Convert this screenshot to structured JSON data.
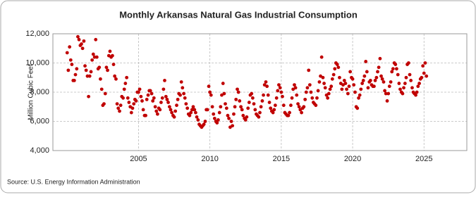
{
  "chart_data": {
    "type": "scatter",
    "title": "Monthly Arkansas Natural Gas Industrial Consumption",
    "y_label": "Million Cubic Feet",
    "source": "Source: U.S. Energy Information Administration",
    "color": "#c00000",
    "grid": true,
    "xlim": [
      1999,
      2028
    ],
    "xticks": [
      2005,
      2010,
      2015,
      2020,
      2025
    ],
    "ylim": [
      4000,
      12000
    ],
    "yticks": [
      {
        "value": 4000,
        "label": "4,000"
      },
      {
        "value": 6000,
        "label": "6,000"
      },
      {
        "value": 8000,
        "label": "8,000"
      },
      {
        "value": 10000,
        "label": "10,000"
      },
      {
        "value": 12000,
        "label": "12,000"
      }
    ],
    "x": [
      2000.0,
      2000.08,
      2000.17,
      2000.25,
      2000.33,
      2000.42,
      2000.5,
      2000.58,
      2000.67,
      2000.75,
      2000.83,
      2000.92,
      2001.0,
      2001.08,
      2001.17,
      2001.25,
      2001.33,
      2001.42,
      2001.5,
      2001.58,
      2001.67,
      2001.75,
      2001.83,
      2001.92,
      2002.0,
      2002.08,
      2002.17,
      2002.25,
      2002.33,
      2002.42,
      2002.5,
      2002.58,
      2002.67,
      2002.75,
      2002.83,
      2002.92,
      2003.0,
      2003.08,
      2003.17,
      2003.25,
      2003.33,
      2003.42,
      2003.5,
      2003.58,
      2003.67,
      2003.75,
      2003.83,
      2003.92,
      2004.0,
      2004.08,
      2004.17,
      2004.25,
      2004.33,
      2004.42,
      2004.5,
      2004.58,
      2004.67,
      2004.75,
      2004.83,
      2004.92,
      2005.0,
      2005.08,
      2005.17,
      2005.25,
      2005.33,
      2005.42,
      2005.5,
      2005.58,
      2005.67,
      2005.75,
      2005.83,
      2005.92,
      2006.0,
      2006.08,
      2006.17,
      2006.25,
      2006.33,
      2006.42,
      2006.5,
      2006.58,
      2006.67,
      2006.75,
      2006.83,
      2006.92,
      2007.0,
      2007.08,
      2007.17,
      2007.25,
      2007.33,
      2007.42,
      2007.5,
      2007.58,
      2007.67,
      2007.75,
      2007.83,
      2007.92,
      2008.0,
      2008.08,
      2008.17,
      2008.25,
      2008.33,
      2008.42,
      2008.5,
      2008.58,
      2008.67,
      2008.75,
      2008.83,
      2008.92,
      2009.0,
      2009.08,
      2009.17,
      2009.25,
      2009.33,
      2009.42,
      2009.5,
      2009.58,
      2009.67,
      2009.75,
      2009.83,
      2009.92,
      2010.0,
      2010.08,
      2010.17,
      2010.25,
      2010.33,
      2010.42,
      2010.5,
      2010.58,
      2010.67,
      2010.75,
      2010.83,
      2010.92,
      2011.0,
      2011.08,
      2011.17,
      2011.25,
      2011.33,
      2011.42,
      2011.5,
      2011.58,
      2011.67,
      2011.75,
      2011.83,
      2011.92,
      2012.0,
      2012.08,
      2012.17,
      2012.25,
      2012.33,
      2012.42,
      2012.5,
      2012.58,
      2012.67,
      2012.75,
      2012.83,
      2012.92,
      2013.0,
      2013.08,
      2013.17,
      2013.25,
      2013.33,
      2013.42,
      2013.5,
      2013.58,
      2013.67,
      2013.75,
      2013.83,
      2013.92,
      2014.0,
      2014.08,
      2014.17,
      2014.25,
      2014.33,
      2014.42,
      2014.5,
      2014.58,
      2014.67,
      2014.75,
      2014.83,
      2014.92,
      2015.0,
      2015.08,
      2015.17,
      2015.25,
      2015.33,
      2015.42,
      2015.5,
      2015.58,
      2015.67,
      2015.75,
      2015.83,
      2015.92,
      2016.0,
      2016.08,
      2016.17,
      2016.25,
      2016.33,
      2016.42,
      2016.5,
      2016.58,
      2016.67,
      2016.75,
      2016.83,
      2016.92,
      2017.0,
      2017.08,
      2017.17,
      2017.25,
      2017.33,
      2017.42,
      2017.5,
      2017.58,
      2017.67,
      2017.75,
      2017.83,
      2017.92,
      2018.0,
      2018.08,
      2018.17,
      2018.25,
      2018.33,
      2018.42,
      2018.5,
      2018.58,
      2018.67,
      2018.75,
      2018.83,
      2018.92,
      2019.0,
      2019.08,
      2019.17,
      2019.25,
      2019.33,
      2019.42,
      2019.5,
      2019.58,
      2019.67,
      2019.75,
      2019.83,
      2019.92,
      2020.0,
      2020.08,
      2020.17,
      2020.25,
      2020.33,
      2020.42,
      2020.5,
      2020.58,
      2020.67,
      2020.75,
      2020.83,
      2020.92,
      2021.0,
      2021.08,
      2021.17,
      2021.25,
      2021.33,
      2021.42,
      2021.5,
      2021.58,
      2021.67,
      2021.75,
      2021.83,
      2021.92,
      2022.0,
      2022.08,
      2022.17,
      2022.25,
      2022.33,
      2022.42,
      2022.5,
      2022.58,
      2022.67,
      2022.75,
      2022.83,
      2022.92,
      2023.0,
      2023.08,
      2023.17,
      2023.25,
      2023.33,
      2023.42,
      2023.5,
      2023.58,
      2023.67,
      2023.75,
      2023.83,
      2023.92,
      2024.0,
      2024.08,
      2024.17,
      2024.25,
      2024.33,
      2024.42,
      2024.5,
      2024.58,
      2024.67,
      2024.75,
      2024.83,
      2024.92,
      2025.0,
      2025.08,
      2025.17
    ],
    "values": [
      10700,
      9500,
      11100,
      10200,
      9900,
      8800,
      8800,
      9200,
      9600,
      11800,
      11600,
      11200,
      11300,
      11000,
      11500,
      9800,
      9500,
      9100,
      7700,
      9100,
      9400,
      10200,
      10600,
      10400,
      11600,
      10400,
      9600,
      9700,
      8900,
      8200,
      7100,
      7200,
      7900,
      9700,
      9500,
      10500,
      10800,
      10400,
      10500,
      9900,
      9100,
      8900,
      7200,
      6900,
      6700,
      7100,
      7700,
      7600,
      8200,
      8600,
      9000,
      7600,
      7300,
      7000,
      6600,
      6900,
      7200,
      7500,
      7400,
      8000,
      8000,
      8200,
      7700,
      7400,
      6800,
      6400,
      6400,
      7500,
      7800,
      8100,
      8100,
      7900,
      7400,
      7600,
      7000,
      6700,
      6500,
      6900,
      6800,
      7300,
      7600,
      8200,
      8800,
      7700,
      7500,
      7300,
      7000,
      6800,
      6600,
      6400,
      6300,
      6700,
      7100,
      7500,
      7900,
      7800,
      8700,
      8300,
      7900,
      7600,
      7200,
      6900,
      6500,
      6400,
      6600,
      6800,
      7000,
      6800,
      6600,
      6300,
      6100,
      5800,
      5700,
      5600,
      5700,
      5800,
      6000,
      6800,
      6800,
      8400,
      8000,
      7800,
      7000,
      6500,
      6200,
      6000,
      5900,
      6100,
      6600,
      7000,
      7800,
      8600,
      7900,
      7200,
      6900,
      6400,
      6200,
      5600,
      6000,
      5700,
      6500,
      7000,
      7500,
      8200,
      8000,
      7400,
      7000,
      6800,
      6400,
      6200,
      6100,
      6300,
      6900,
      7300,
      7800,
      7900,
      7600,
      7200,
      6800,
      6500,
      6400,
      6300,
      6600,
      7000,
      7400,
      7800,
      8500,
      8700,
      8400,
      7800,
      7300,
      6900,
      6700,
      6600,
      6800,
      7100,
      7600,
      8100,
      8500,
      8300,
      8000,
      7700,
      7100,
      6600,
      6500,
      6400,
      6400,
      6600,
      7100,
      7600,
      8200,
      8500,
      8300,
      7800,
      7200,
      7000,
      6800,
      6600,
      6900,
      7000,
      7500,
      8000,
      8300,
      9500,
      8500,
      8000,
      7600,
      7300,
      7200,
      7100,
      7600,
      8100,
      8700,
      9100,
      10400,
      9000,
      8600,
      8300,
      7800,
      7600,
      7900,
      8200,
      8400,
      8900,
      9200,
      9600,
      10000,
      9900,
      9700,
      9000,
      8600,
      8200,
      8500,
      8800,
      8600,
      8200,
      7900,
      8400,
      9400,
      9000,
      8900,
      8500,
      8000,
      7000,
      6900,
      7600,
      7800,
      8200,
      8600,
      8800,
      9100,
      10100,
      9400,
      8300,
      8700,
      8800,
      8500,
      8400,
      8400,
      8800,
      9000,
      9400,
      9700,
      10300,
      9100,
      8900,
      8700,
      8100,
      7900,
      7400,
      7900,
      8400,
      8700,
      9400,
      9600,
      10000,
      9900,
      9600,
      9200,
      8600,
      8200,
      8000,
      7900,
      8300,
      8600,
      9000,
      9900,
      10000,
      9200,
      8800,
      8300,
      8000,
      7900,
      7800,
      8000,
      8400,
      8600,
      8900,
      9000,
      9800,
      9300,
      10000,
      9100
    ]
  }
}
